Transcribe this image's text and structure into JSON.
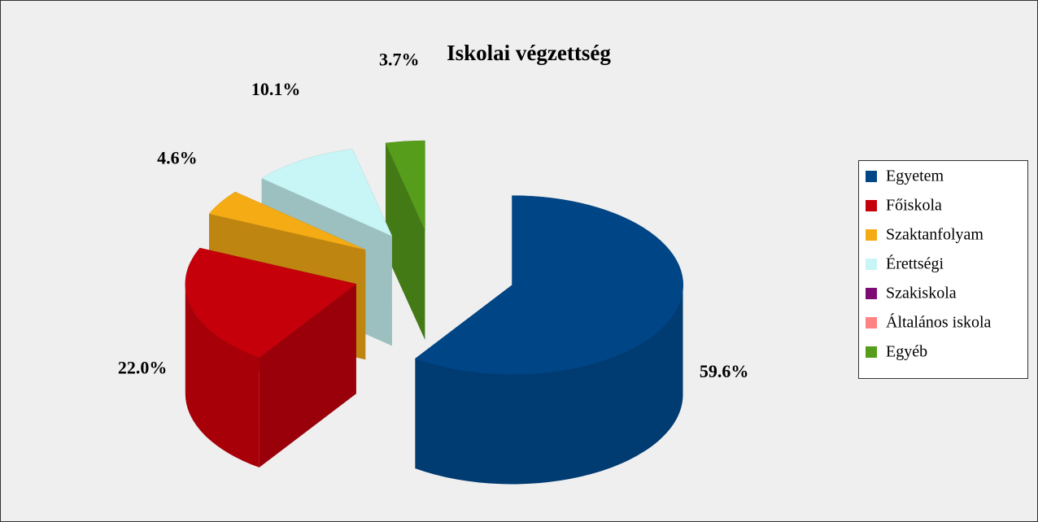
{
  "chart_data": {
    "type": "pie3d",
    "title": "Iskolai végzettség",
    "categories": [
      "Egyetem",
      "Főiskola",
      "Szaktanfolyam",
      "Érettségi",
      "Szakiskola",
      "Általános iskola",
      "Egyéb"
    ],
    "values": [
      59.6,
      22.0,
      4.6,
      10.1,
      0,
      0,
      3.7
    ],
    "value_labels": [
      "59.6%",
      "22.0%",
      "4.6%",
      "10.1%",
      null,
      null,
      "3.7%"
    ],
    "colors": [
      "#004586",
      "#c5000b",
      "#f4ab14",
      "#c8f5f5",
      "#7e0b73",
      "#ff8383",
      "#579d1c"
    ],
    "legend": "right"
  }
}
